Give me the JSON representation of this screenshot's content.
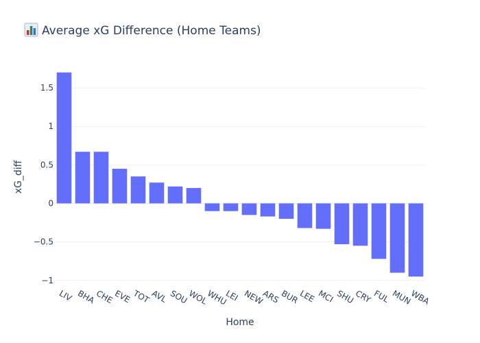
{
  "chart_data": {
    "type": "bar",
    "title": "Average xG Difference (Home Teams)",
    "title_icon": "bar-chart-emoji",
    "xlabel": "Home",
    "ylabel": "xG_diff",
    "categories": [
      "LIV",
      "BHA",
      "CHE",
      "EVE",
      "TOT",
      "AVL",
      "SOU",
      "WOL",
      "WHU",
      "LEI",
      "NEW",
      "ARS",
      "BUR",
      "LEE",
      "MCI",
      "SHU",
      "CRY",
      "FUL",
      "MUN",
      "WBA"
    ],
    "values": [
      1.7,
      0.67,
      0.67,
      0.45,
      0.35,
      0.27,
      0.22,
      0.2,
      -0.1,
      -0.1,
      -0.15,
      -0.17,
      -0.2,
      -0.32,
      -0.33,
      -0.53,
      -0.55,
      -0.72,
      -0.9,
      -0.95
    ],
    "ylim": [
      -1.1,
      1.75
    ],
    "yticks": [
      -1,
      -0.5,
      0,
      0.5,
      1,
      1.5
    ],
    "ytick_labels": [
      "−1",
      "−0.5",
      "0",
      "0.5",
      "1",
      "1.5"
    ],
    "grid": true,
    "bar_color": "#636efa"
  }
}
